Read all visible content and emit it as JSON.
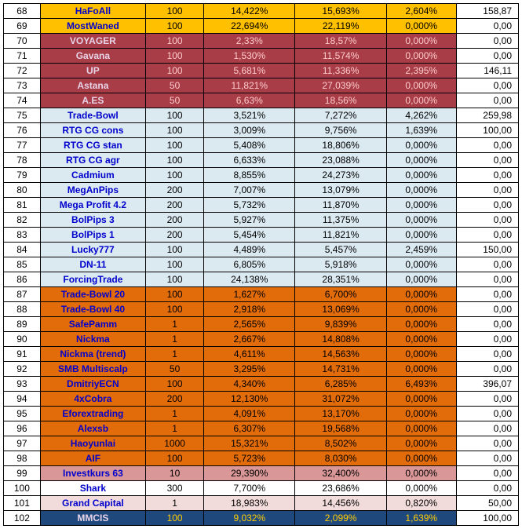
{
  "rows": [
    {
      "idx": "68",
      "name": "HaFoAll",
      "c3": "100",
      "c4": "14,422%",
      "c5": "15,693%",
      "c6": "2,604%",
      "c7": "158,87",
      "g": "yellow"
    },
    {
      "idx": "69",
      "name": "MostWaned",
      "c3": "100",
      "c4": "22,694%",
      "c5": "22,119%",
      "c6": "0,000%",
      "c7": "0,00",
      "g": "yellow"
    },
    {
      "idx": "70",
      "name": "VOYAGER",
      "c3": "100",
      "c4": "2,33%",
      "c5": "18,57%",
      "c6": "0,000%",
      "c7": "0,00",
      "g": "darkred"
    },
    {
      "idx": "71",
      "name": "Gavana",
      "c3": "100",
      "c4": "1,530%",
      "c5": "11,574%",
      "c6": "0,000%",
      "c7": "0,00",
      "g": "darkred"
    },
    {
      "idx": "72",
      "name": "UP",
      "c3": "100",
      "c4": "5,681%",
      "c5": "11,336%",
      "c6": "2,395%",
      "c7": "146,11",
      "g": "darkred"
    },
    {
      "idx": "73",
      "name": "Astana",
      "c3": "50",
      "c4": "11,821%",
      "c5": "27,039%",
      "c6": "0,000%",
      "c7": "0,00",
      "g": "darkred"
    },
    {
      "idx": "74",
      "name": "A.ES",
      "c3": "50",
      "c4": "6,63%",
      "c5": "18,56%",
      "c6": "0,000%",
      "c7": "0,00",
      "g": "darkred"
    },
    {
      "idx": "75",
      "name": "Trade-Bowl",
      "c3": "100",
      "c4": "3,521%",
      "c5": "7,272%",
      "c6": "4,262%",
      "c7": "259,98",
      "g": "lightblue"
    },
    {
      "idx": "76",
      "name": "RTG CG cons",
      "c3": "100",
      "c4": "3,009%",
      "c5": "9,756%",
      "c6": "1,639%",
      "c7": "100,00",
      "g": "lightblue"
    },
    {
      "idx": "77",
      "name": "RTG CG stan",
      "c3": "100",
      "c4": "5,408%",
      "c5": "18,806%",
      "c6": "0,000%",
      "c7": "0,00",
      "g": "lightblue"
    },
    {
      "idx": "78",
      "name": "RTG CG agr",
      "c3": "100",
      "c4": "6,633%",
      "c5": "23,088%",
      "c6": "0,000%",
      "c7": "0,00",
      "g": "lightblue"
    },
    {
      "idx": "79",
      "name": "Cadmium",
      "c3": "100",
      "c4": "8,855%",
      "c5": "24,273%",
      "c6": "0,000%",
      "c7": "0,00",
      "g": "lightblue"
    },
    {
      "idx": "80",
      "name": "MegAnPips",
      "c3": "200",
      "c4": "7,007%",
      "c5": "13,079%",
      "c6": "0,000%",
      "c7": "0,00",
      "g": "lightblue"
    },
    {
      "idx": "81",
      "name": "Mega Profit 4.2",
      "c3": "200",
      "c4": "5,732%",
      "c5": "11,870%",
      "c6": "0,000%",
      "c7": "0,00",
      "g": "lightblue"
    },
    {
      "idx": "82",
      "name": "BolPips 3",
      "c3": "200",
      "c4": "5,927%",
      "c5": "11,375%",
      "c6": "0,000%",
      "c7": "0,00",
      "g": "lightblue"
    },
    {
      "idx": "83",
      "name": "BolPips 1",
      "c3": "200",
      "c4": "5,454%",
      "c5": "11,821%",
      "c6": "0,000%",
      "c7": "0,00",
      "g": "lightblue"
    },
    {
      "idx": "84",
      "name": "Lucky777",
      "c3": "100",
      "c4": "4,489%",
      "c5": "5,457%",
      "c6": "2,459%",
      "c7": "150,00",
      "g": "lightblue"
    },
    {
      "idx": "85",
      "name": "DN-11",
      "c3": "100",
      "c4": "6,805%",
      "c5": "5,918%",
      "c6": "0,000%",
      "c7": "0,00",
      "g": "lightblue"
    },
    {
      "idx": "86",
      "name": "ForcingTrade",
      "c3": "100",
      "c4": "24,138%",
      "c5": "28,351%",
      "c6": "0,000%",
      "c7": "0,00",
      "g": "lightblue"
    },
    {
      "idx": "87",
      "name": "Trade-Bowl 20",
      "c3": "100",
      "c4": "1,627%",
      "c5": "6,700%",
      "c6": "0,000%",
      "c7": "0,00",
      "g": "orange"
    },
    {
      "idx": "88",
      "name": "Trade-Bowl 40",
      "c3": "100",
      "c4": "2,918%",
      "c5": "13,069%",
      "c6": "0,000%",
      "c7": "0,00",
      "g": "orange"
    },
    {
      "idx": "89",
      "name": "SafePamm",
      "c3": "1",
      "c4": "2,565%",
      "c5": "9,839%",
      "c6": "0,000%",
      "c7": "0,00",
      "g": "orange"
    },
    {
      "idx": "90",
      "name": "Nickma",
      "c3": "1",
      "c4": "2,667%",
      "c5": "14,808%",
      "c6": "0,000%",
      "c7": "0,00",
      "g": "orange"
    },
    {
      "idx": "91",
      "name": "Nickma (trend)",
      "c3": "1",
      "c4": "4,611%",
      "c5": "14,563%",
      "c6": "0,000%",
      "c7": "0,00",
      "g": "orange"
    },
    {
      "idx": "92",
      "name": "SMB Multiscalp",
      "c3": "50",
      "c4": "3,295%",
      "c5": "14,731%",
      "c6": "0,000%",
      "c7": "0,00",
      "g": "orange"
    },
    {
      "idx": "93",
      "name": "DmitriyECN",
      "c3": "100",
      "c4": "4,340%",
      "c5": "6,285%",
      "c6": "6,493%",
      "c7": "396,07",
      "g": "orange"
    },
    {
      "idx": "94",
      "name": "4xCobra",
      "c3": "200",
      "c4": "12,130%",
      "c5": "31,072%",
      "c6": "0,000%",
      "c7": "0,00",
      "g": "orange"
    },
    {
      "idx": "95",
      "name": "Eforextrading",
      "c3": "1",
      "c4": "4,091%",
      "c5": "13,170%",
      "c6": "0,000%",
      "c7": "0,00",
      "g": "orange"
    },
    {
      "idx": "96",
      "name": "Alexsb",
      "c3": "1",
      "c4": "6,307%",
      "c5": "19,568%",
      "c6": "0,000%",
      "c7": "0,00",
      "g": "orange"
    },
    {
      "idx": "97",
      "name": "Haoyunlai",
      "c3": "1000",
      "c4": "15,321%",
      "c5": "8,502%",
      "c6": "0,000%",
      "c7": "0,00",
      "g": "orange"
    },
    {
      "idx": "98",
      "name": "AIF",
      "c3": "100",
      "c4": "5,723%",
      "c5": "8,030%",
      "c6": "0,000%",
      "c7": "0,00",
      "g": "orange"
    },
    {
      "idx": "99",
      "name": "Investkurs 63",
      "c3": "10",
      "c4": "29,390%",
      "c5": "32,400%",
      "c6": "0,000%",
      "c7": "0,00",
      "g": "pink"
    },
    {
      "idx": "100",
      "name": "Shark",
      "c3": "300",
      "c4": "7,700%",
      "c5": "23,686%",
      "c6": "0,000%",
      "c7": "0,00",
      "g": "white"
    },
    {
      "idx": "101",
      "name": "Grand Capital",
      "c3": "1",
      "c4": "18,983%",
      "c5": "14,456%",
      "c6": "0,820%",
      "c7": "50,00",
      "g": "lightpink"
    },
    {
      "idx": "102",
      "name": "MMCIS",
      "c3": "100",
      "c4": "9,032%",
      "c5": "2,099%",
      "c6": "1,639%",
      "c7": "100,00",
      "g": "blue"
    }
  ]
}
